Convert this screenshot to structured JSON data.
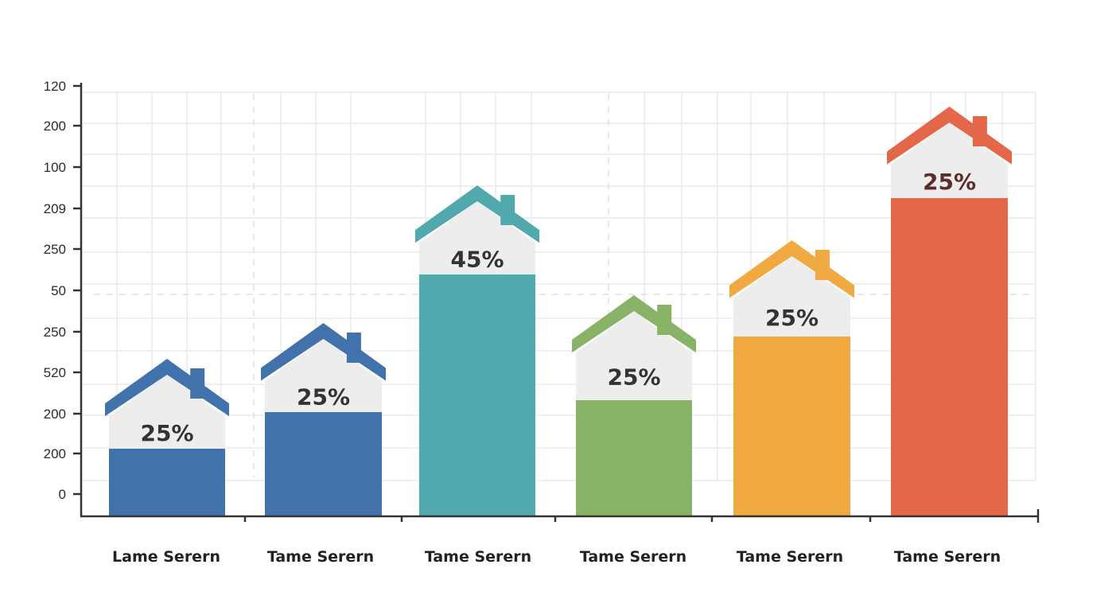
{
  "chart_data": {
    "type": "bar",
    "title": "",
    "xlabel": "",
    "ylabel": "",
    "grid": true,
    "legend": null,
    "y_tick_labels": [
      "120",
      "200",
      "100",
      "209",
      "250",
      "50",
      "250",
      "520",
      "200",
      "200",
      "0"
    ],
    "categories": [
      "Lame Serern",
      "Tame Serern",
      "Tame Serern",
      "Tame Serern",
      "Tame Serern",
      "Tame Serern"
    ],
    "values": [
      17,
      26,
      60,
      29,
      45,
      80
    ],
    "value_labels": [
      "25%",
      "25%",
      "45%",
      "25%",
      "25%",
      "25%"
    ],
    "colors": [
      "#4272AB",
      "#4272AB",
      "#51A9AD",
      "#88B265",
      "#F1AA42",
      "#E5674A"
    ],
    "label_colors": [
      "#333333",
      "#333333",
      "#333333",
      "#333333",
      "#333333",
      "#5A2C2C"
    ],
    "bar_style": "house-shaped bar tops with chimney, light grey house facade holding percentage label",
    "ylim_note": "y-axis tick labels are non-monotonic as rendered; values estimated as relative bar heights on a 0-100 pixel scale"
  },
  "chart": {
    "axis_color": "#333333",
    "grid_color": "#E6ECEE",
    "facade_color": "#EDEDED"
  }
}
